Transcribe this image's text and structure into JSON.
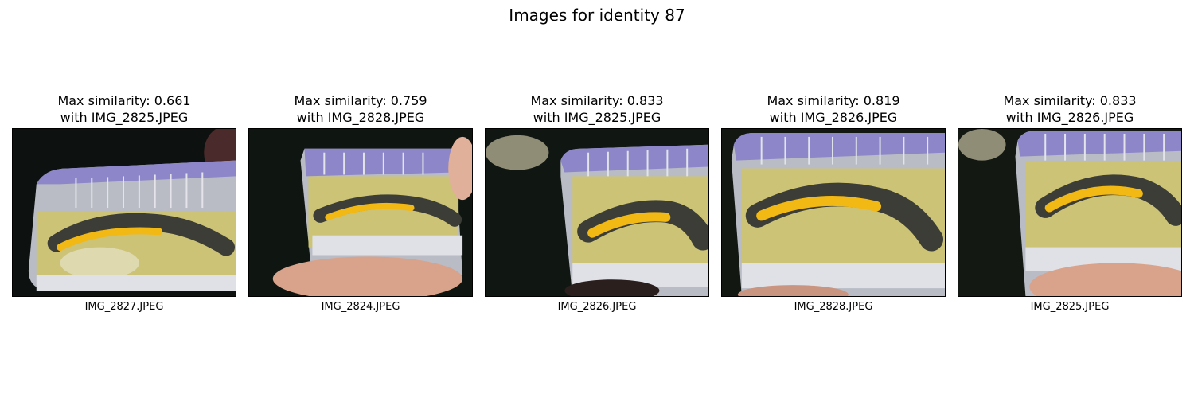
{
  "figure": {
    "title": "Images for identity 87"
  },
  "panels": [
    {
      "line1": "Max similarity: 0.661",
      "line2": "with IMG_2825.JPEG",
      "filename": "IMG_2827.JPEG"
    },
    {
      "line1": "Max similarity: 0.759",
      "line2": "with IMG_2828.JPEG",
      "filename": "IMG_2824.JPEG"
    },
    {
      "line1": "Max similarity: 0.833",
      "line2": "with IMG_2825.JPEG",
      "filename": "IMG_2826.JPEG"
    },
    {
      "line1": "Max similarity: 0.819",
      "line2": "with IMG_2826.JPEG",
      "filename": "IMG_2828.JPEG"
    },
    {
      "line1": "Max similarity: 0.833",
      "line2": "with IMG_2826.JPEG",
      "filename": "IMG_2825.JPEG"
    }
  ],
  "colors": {
    "background": "#0d1210",
    "container_plastic": "#b9bcc4",
    "container_edge": "#8d86c9",
    "sponge": "#cfc46a",
    "newt_body": "#3b3d36",
    "newt_belly": "#f2b814",
    "finger": "#d9a28a"
  }
}
